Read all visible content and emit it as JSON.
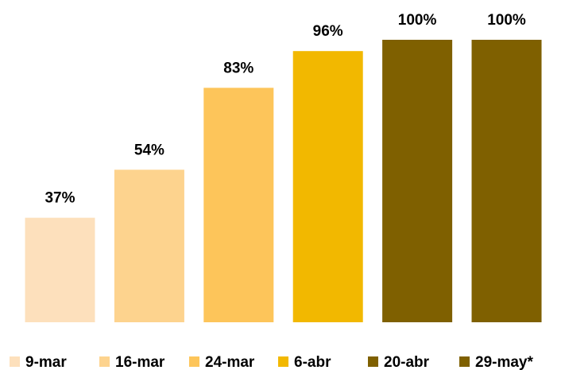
{
  "chart_data": {
    "type": "bar",
    "categories": [
      "9-mar",
      "16-mar",
      "24-mar",
      "6-abr",
      "20-abr",
      "29-may*"
    ],
    "values": [
      37,
      54,
      83,
      96,
      100,
      100
    ],
    "value_labels": [
      "37%",
      "54%",
      "83%",
      "96%",
      "100%",
      "100%"
    ],
    "colors": [
      "#fde0bc",
      "#fdd38e",
      "#fdc55a",
      "#f2b800",
      "#7f6000",
      "#7f6000"
    ]
  }
}
